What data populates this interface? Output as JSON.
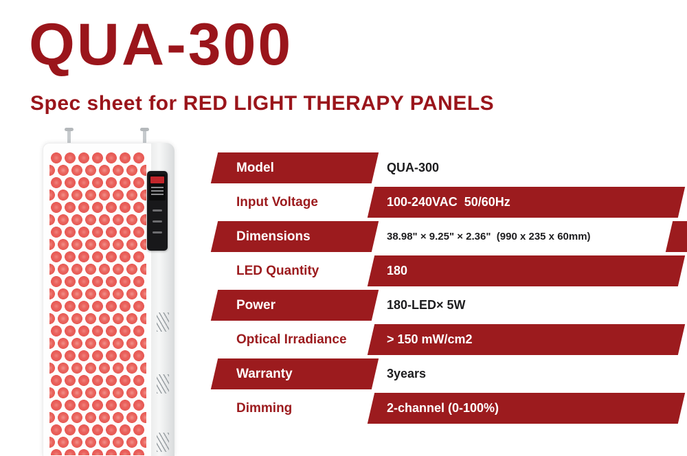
{
  "header": {
    "title": "QUA-300",
    "subtitle": "Spec sheet for RED LIGHT THERAPY PANELS"
  },
  "colors": {
    "accent_red": "#9c1b1e",
    "title_red": "#9a151b",
    "led_dot_red": "#e9605b"
  },
  "product_image": {
    "description": "red-light-therapy-panel"
  },
  "table": {
    "rows": [
      {
        "label": "Model",
        "value": "QUA-300"
      },
      {
        "label": "Input Voltage",
        "value": "100-240VAC  50/60Hz"
      },
      {
        "label": "Dimensions",
        "value": "38.98\" × 9.25\" × 2.36\"  (990 x 235 x 60mm)"
      },
      {
        "label": "LED Quantity",
        "value": "180"
      },
      {
        "label": "Power",
        "value": "180-LED× 5W"
      },
      {
        "label": "Optical Irradiance",
        "value": "> 150 mW/cm2"
      },
      {
        "label": "Warranty",
        "value": "3years"
      },
      {
        "label": "Dimming",
        "value": "2-channel (0-100%)"
      }
    ]
  }
}
